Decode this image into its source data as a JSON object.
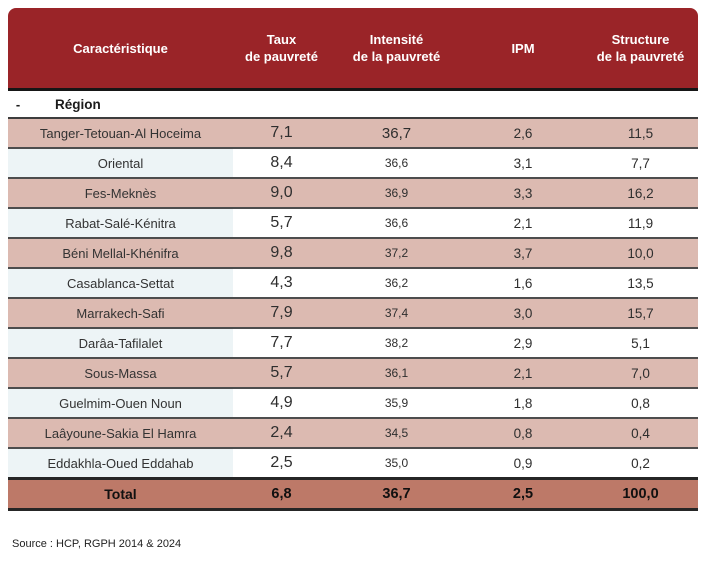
{
  "table": {
    "headers": [
      {
        "l1": "Caractéristique",
        "l2": ""
      },
      {
        "l1": "Taux",
        "l2": "de pauvreté"
      },
      {
        "l1": "Intensité",
        "l2": "de la pauvreté"
      },
      {
        "l1": "IPM",
        "l2": ""
      },
      {
        "l1": "Structure",
        "l2": "de la pauvreté"
      }
    ],
    "group_row": {
      "dash": "-",
      "label": "Région"
    },
    "rows": [
      {
        "region": "Tanger-Tetouan-Al Hoceima",
        "taux": "7,1",
        "intensite": "36,7",
        "ipm": "2,6",
        "structure": "11,5"
      },
      {
        "region": "Oriental",
        "taux": "8,4",
        "intensite": "36,6",
        "ipm": "3,1",
        "structure": "7,7"
      },
      {
        "region": "Fes-Meknès",
        "taux": "9,0",
        "intensite": "36,9",
        "ipm": "3,3",
        "structure": "16,2"
      },
      {
        "region": "Rabat-Salé-Kénitra",
        "taux": "5,7",
        "intensite": "36,6",
        "ipm": "2,1",
        "structure": "11,9"
      },
      {
        "region": "Béni Mellal-Khénifra",
        "taux": "9,8",
        "intensite": "37,2",
        "ipm": "3,7",
        "structure": "10,0"
      },
      {
        "region": "Casablanca-Settat",
        "taux": "4,3",
        "intensite": "36,2",
        "ipm": "1,6",
        "structure": "13,5"
      },
      {
        "region": "Marrakech-Safi",
        "taux": "7,9",
        "intensite": "37,4",
        "ipm": "3,0",
        "structure": "15,7"
      },
      {
        "region": "Darâa-Tafilalet",
        "taux": "7,7",
        "intensite": "38,2",
        "ipm": "2,9",
        "structure": "5,1"
      },
      {
        "region": "Sous-Massa",
        "taux": "5,7",
        "intensite": "36,1",
        "ipm": "2,1",
        "structure": "7,0"
      },
      {
        "region": "Guelmim-Ouen Noun",
        "taux": "4,9",
        "intensite": "35,9",
        "ipm": "1,8",
        "structure": "0,8"
      },
      {
        "region": "Laâyoune-Sakia El Hamra",
        "taux": "2,4",
        "intensite": "34,5",
        "ipm": "0,8",
        "structure": "0,4"
      },
      {
        "region": "Eddakhla-Oued Eddahab",
        "taux": "2,5",
        "intensite": "35,0",
        "ipm": "0,9",
        "structure": "0,2"
      }
    ],
    "total": {
      "label": "Total",
      "taux": "6,8",
      "intensite": "36,7",
      "ipm": "2,5",
      "structure": "100,0"
    }
  },
  "source": {
    "text": "Source : HCP, RGPH 2014 & 2024"
  },
  "colors": {
    "header_bg": "#9a2428",
    "row_pink": "#dcbab1",
    "row_light_first_cell": "#edf4f6",
    "total_bg": "#bd7968"
  }
}
